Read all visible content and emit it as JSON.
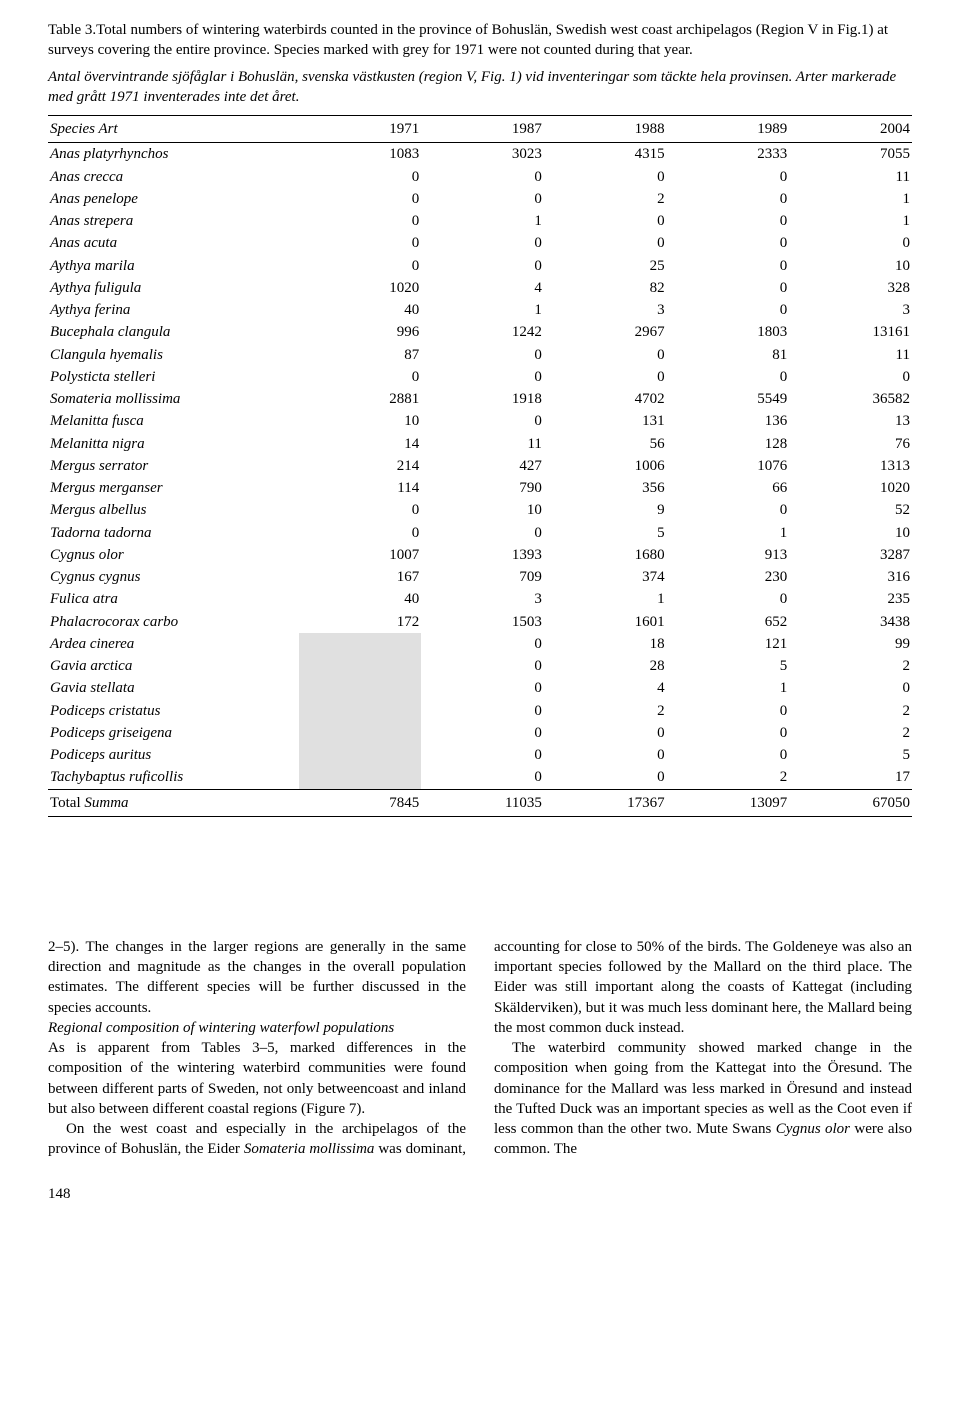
{
  "caption_en": "Table 3.Total numbers of wintering waterbirds counted in the province of Bohuslän, Swedish west coast archipelagos (Region V in Fig.1) at surveys covering the entire province. Species marked with grey for 1971 were not counted during that year.",
  "caption_sv": "Antal övervintrande sjöfåglar i Bohuslän, svenska västkusten (region V, Fig. 1) vid inventeringar som täckte hela provinsen. Arter markerade med grått 1971 inventerades inte det året.",
  "table": {
    "header_label": "Species Art",
    "years": [
      "1971",
      "1987",
      "1988",
      "1989",
      "2004"
    ],
    "rows": [
      {
        "sp": "Anas platyrhynchos",
        "v": [
          "1083",
          "3023",
          "4315",
          "2333",
          "7055"
        ],
        "g": false
      },
      {
        "sp": "Anas crecca",
        "v": [
          "0",
          "0",
          "0",
          "0",
          "11"
        ],
        "g": false
      },
      {
        "sp": "Anas penelope",
        "v": [
          "0",
          "0",
          "2",
          "0",
          "1"
        ],
        "g": false
      },
      {
        "sp": "Anas strepera",
        "v": [
          "0",
          "1",
          "0",
          "0",
          "1"
        ],
        "g": false
      },
      {
        "sp": "Anas acuta",
        "v": [
          "0",
          "0",
          "0",
          "0",
          "0"
        ],
        "g": false
      },
      {
        "sp": "Aythya marila",
        "v": [
          "0",
          "0",
          "25",
          "0",
          "10"
        ],
        "g": false
      },
      {
        "sp": "Aythya fuligula",
        "v": [
          "1020",
          "4",
          "82",
          "0",
          "328"
        ],
        "g": false
      },
      {
        "sp": "Aythya ferina",
        "v": [
          "40",
          "1",
          "3",
          "0",
          "3"
        ],
        "g": false
      },
      {
        "sp": "Bucephala clangula",
        "v": [
          "996",
          "1242",
          "2967",
          "1803",
          "13161"
        ],
        "g": false
      },
      {
        "sp": "Clangula hyemalis",
        "v": [
          "87",
          "0",
          "0",
          "81",
          "11"
        ],
        "g": false
      },
      {
        "sp": "Polysticta stelleri",
        "v": [
          "0",
          "0",
          "0",
          "0",
          "0"
        ],
        "g": false
      },
      {
        "sp": "Somateria mollissima",
        "v": [
          "2881",
          "1918",
          "4702",
          "5549",
          "36582"
        ],
        "g": false
      },
      {
        "sp": "Melanitta fusca",
        "v": [
          "10",
          "0",
          "131",
          "136",
          "13"
        ],
        "g": false
      },
      {
        "sp": "Melanitta nigra",
        "v": [
          "14",
          "11",
          "56",
          "128",
          "76"
        ],
        "g": false
      },
      {
        "sp": "Mergus serrator",
        "v": [
          "214",
          "427",
          "1006",
          "1076",
          "1313"
        ],
        "g": false
      },
      {
        "sp": "Mergus merganser",
        "v": [
          "114",
          "790",
          "356",
          "66",
          "1020"
        ],
        "g": false
      },
      {
        "sp": "Mergus albellus",
        "v": [
          "0",
          "10",
          "9",
          "0",
          "52"
        ],
        "g": false
      },
      {
        "sp": "Tadorna tadorna",
        "v": [
          "0",
          "0",
          "5",
          "1",
          "10"
        ],
        "g": false
      },
      {
        "sp": "Cygnus olor",
        "v": [
          "1007",
          "1393",
          "1680",
          "913",
          "3287"
        ],
        "g": false
      },
      {
        "sp": "Cygnus cygnus",
        "v": [
          "167",
          "709",
          "374",
          "230",
          "316"
        ],
        "g": false
      },
      {
        "sp": "Fulica atra",
        "v": [
          "40",
          "3",
          "1",
          "0",
          "235"
        ],
        "g": false
      },
      {
        "sp": "Phalacrocorax carbo",
        "v": [
          "172",
          "1503",
          "1601",
          "652",
          "3438"
        ],
        "g": false
      },
      {
        "sp": "Ardea cinerea",
        "v": [
          "",
          "0",
          "18",
          "121",
          "99"
        ],
        "g": true
      },
      {
        "sp": "Gavia arctica",
        "v": [
          "",
          "0",
          "28",
          "5",
          "2"
        ],
        "g": true
      },
      {
        "sp": "Gavia stellata",
        "v": [
          "",
          "0",
          "4",
          "1",
          "0"
        ],
        "g": true
      },
      {
        "sp": "Podiceps cristatus",
        "v": [
          "",
          "0",
          "2",
          "0",
          "2"
        ],
        "g": true
      },
      {
        "sp": "Podiceps griseigena",
        "v": [
          "",
          "0",
          "0",
          "0",
          "2"
        ],
        "g": true
      },
      {
        "sp": "Podiceps auritus",
        "v": [
          "",
          "0",
          "0",
          "0",
          "5"
        ],
        "g": true
      },
      {
        "sp": "Tachybaptus ruficollis",
        "v": [
          "",
          "0",
          "0",
          "2",
          "17"
        ],
        "g": true
      }
    ],
    "total_label": "Total ",
    "total_label_it": "Summa",
    "totals": [
      "7845",
      "11035",
      "17367",
      "13097",
      "67050"
    ]
  },
  "body": {
    "p1": "2–5). The changes in the larger regions are generally in the same direction and magnitude as the changes in the overall population estimates. The different species will be further discussed in the species accounts.",
    "head": "Regional composition of wintering waterfowl populations",
    "p2": "As is apparent from Tables 3–5, marked differences in the composition of the wintering waterbird communities were found between different parts of Sweden, not only betweencoast and inland but also between different coastal regions (Figure 7).",
    "p3a": "On the west coast and especially in the archipela",
    "p3b_pre": "gos of the province of Bohuslän, the Eider ",
    "p3b_it": "Somateria mollissima",
    "p3b_post": " was dominant, accounting for close to 50% of the birds. The Goldeneye was also an important species followed by the Mallard on the third place. The Eider was still important along the coasts of Kattegat (including Skälderviken), but it was much less dominant here, the Mallard being the most common duck instead.",
    "p4_pre": "The waterbird community showed marked change in the composition when going from the Kattegat into the Öresund. The dominance for the Mallard was less marked in Öresund and instead the Tufted Duck was an important species as well as the Coot even if less common than the other two. Mute Swans ",
    "p4_it": "Cygnus olor",
    "p4_post": " were also common. The"
  },
  "page_number": "148"
}
